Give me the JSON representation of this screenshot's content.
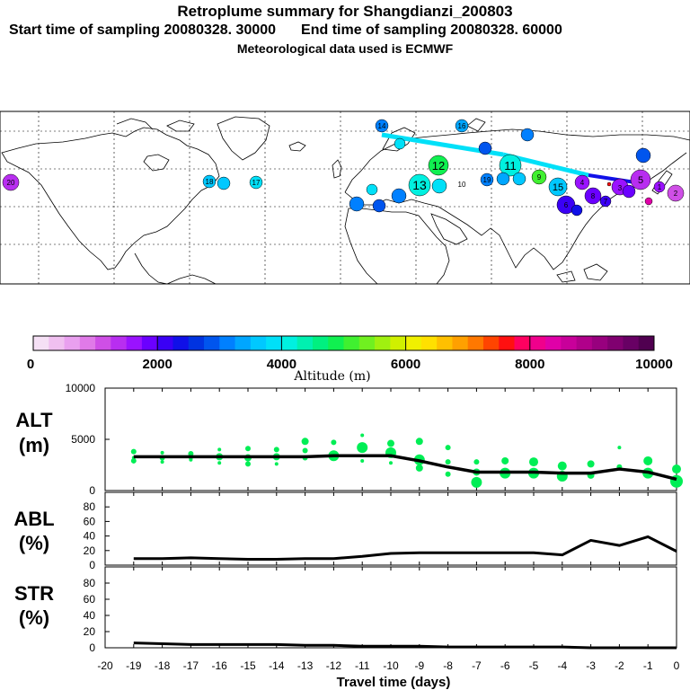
{
  "header": {
    "title": "Retroplume summary for Shangdianzi_200803",
    "start": "Start time of sampling 20080328. 30000",
    "end": "End time of sampling 20080328. 60000",
    "met": "Meteorological data used is ECMWF"
  },
  "colorbar": {
    "ticks": [
      "0",
      "2000",
      "4000",
      "6000",
      "8000",
      "10000"
    ],
    "label": "Altitude (m)",
    "colors": [
      "#f5e0f5",
      "#f0c0f0",
      "#e9a0ef",
      "#e07ae8",
      "#cf4fe6",
      "#b82ef0",
      "#9a12ff",
      "#6b00ff",
      "#3a00f5",
      "#1010e8",
      "#0033e0",
      "#0055ee",
      "#0080ff",
      "#00a6ff",
      "#00c8ff",
      "#00e0f8",
      "#00f0e0",
      "#00f0b0",
      "#00f080",
      "#10f050",
      "#40f030",
      "#70f020",
      "#a0f010",
      "#d0f000",
      "#f0f000",
      "#ffe000",
      "#ffc000",
      "#ffa000",
      "#ff7800",
      "#ff4400",
      "#ff1010",
      "#ff0060",
      "#f0008c",
      "#e000a8",
      "#c8009a",
      "#b0008a",
      "#98007e",
      "#800070",
      "#680064",
      "#500050"
    ]
  },
  "map_labels": [
    "14",
    "16",
    "13",
    "12",
    "11",
    "9",
    "17",
    "18",
    "19",
    "10",
    "15",
    "4",
    "3",
    "8",
    "5",
    "2",
    "6",
    "7",
    "1",
    "20"
  ],
  "chart_data": [
    {
      "name": "ALT",
      "type": "scatter",
      "label": "ALT",
      "unit": "(m)",
      "ylim": [
        0,
        10000
      ],
      "yticks": [
        "10000",
        "5000",
        "0"
      ],
      "xlim": [
        -20,
        0
      ],
      "xticks": [
        -20,
        -19,
        -18,
        -17,
        -16,
        -15,
        -14,
        -13,
        -12,
        -11,
        -10,
        -9,
        -8,
        -7,
        -6,
        -5,
        -4,
        -3,
        -2,
        -1,
        0
      ],
      "xlabel": "Travel time (days)",
      "mean_line": {
        "x": [
          -19,
          -18,
          -17,
          -16,
          -15,
          -14,
          -13,
          -12,
          -11,
          -10,
          -9,
          -8,
          -7,
          -6,
          -5,
          -4,
          -3,
          -2,
          -1,
          0
        ],
        "y": [
          3300,
          3300,
          3300,
          3300,
          3300,
          3300,
          3300,
          3400,
          3400,
          3400,
          2900,
          2300,
          1800,
          1800,
          1800,
          1700,
          1700,
          2100,
          1800,
          1100
        ]
      },
      "points": {
        "x": [
          -19,
          -19,
          -19,
          -18,
          -18,
          -18,
          -17,
          -17,
          -17,
          -16,
          -16,
          -16,
          -15,
          -15,
          -15,
          -14,
          -14,
          -14,
          -13,
          -13,
          -13,
          -12,
          -12,
          -11,
          -11,
          -11,
          -10,
          -10,
          -10,
          -9,
          -9,
          -9,
          -8,
          -8,
          -8,
          -7,
          -7,
          -7,
          -6,
          -6,
          -5,
          -5,
          -4,
          -4,
          -3,
          -3,
          -2,
          -2,
          -1,
          -1,
          0,
          0
        ],
        "y": [
          3800,
          3200,
          2900,
          3700,
          3200,
          2800,
          3600,
          3300,
          3000,
          4000,
          3300,
          2700,
          4100,
          3200,
          2600,
          4000,
          3300,
          2600,
          4800,
          3900,
          3200,
          4700,
          3400,
          5400,
          4200,
          2900,
          4600,
          3700,
          2700,
          4800,
          3000,
          2200,
          4200,
          2800,
          1600,
          2800,
          1800,
          800,
          2900,
          1700,
          2800,
          1700,
          2400,
          1400,
          2600,
          1500,
          4200,
          2300,
          2900,
          1700,
          2100,
          900
        ],
        "r": [
          3,
          2,
          3,
          2,
          3,
          2,
          3,
          3,
          2,
          2,
          4,
          2,
          3,
          4,
          3,
          3,
          4,
          2,
          4,
          3,
          3,
          3,
          6,
          2,
          6,
          2,
          4,
          6,
          2,
          4,
          6,
          4,
          3,
          3,
          3,
          3,
          4,
          6,
          4,
          6,
          5,
          6,
          5,
          6,
          4,
          4,
          2,
          3,
          5,
          6,
          5,
          7
        ]
      }
    },
    {
      "name": "ABL",
      "type": "line",
      "label": "ABL",
      "unit": "(%)",
      "ylim": [
        0,
        100
      ],
      "yticks": [
        "80",
        "60",
        "40",
        "20",
        "0"
      ],
      "x": [
        -19,
        -18,
        -17,
        -16,
        -15,
        -14,
        -13,
        -12,
        -11,
        -10,
        -9,
        -8,
        -7,
        -6,
        -5,
        -4,
        -3,
        -2,
        -1,
        0
      ],
      "y": [
        9,
        9,
        10,
        9,
        8,
        8,
        9,
        9,
        12,
        16,
        17,
        17,
        17,
        17,
        17,
        14,
        34,
        27,
        39,
        19
      ]
    },
    {
      "name": "STR",
      "type": "line",
      "label": "STR",
      "unit": "(%)",
      "ylim": [
        0,
        100
      ],
      "yticks": [
        "80",
        "60",
        "40",
        "20",
        "0"
      ],
      "x": [
        -19,
        -18,
        -17,
        -16,
        -15,
        -14,
        -13,
        -12,
        -11,
        -10,
        -9,
        -8,
        -7,
        -6,
        -5,
        -4,
        -3,
        -2,
        -1,
        0
      ],
      "y": [
        6,
        5,
        4,
        4,
        4,
        4,
        3,
        3,
        2,
        2,
        2,
        1,
        1,
        1,
        1,
        1,
        0,
        0,
        0,
        0
      ]
    }
  ]
}
